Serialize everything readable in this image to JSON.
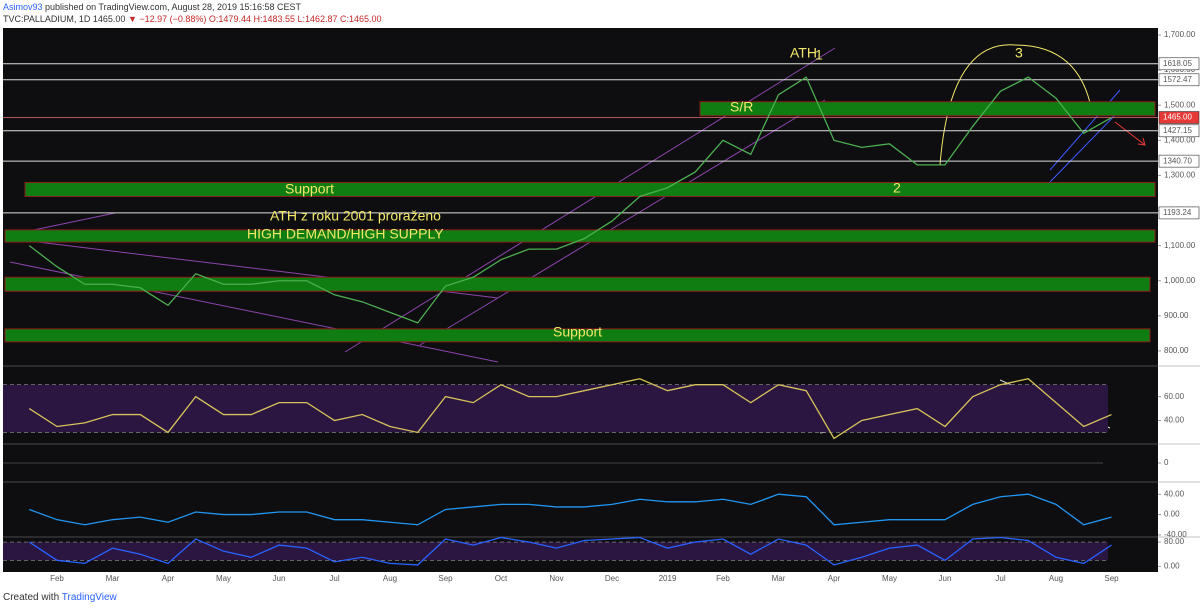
{
  "header": {
    "author": "Asimov93",
    "published": "published on TradingView.com, August 28, 2019 15:16:58 CEST",
    "symbol": "TVC:PALLADIUM, 1D",
    "last": "1465.00",
    "change": "▼ −12.97 (−0.88%)",
    "ohlc": "O:1479.44 H:1483.55 L:1462.87 C:1465.00"
  },
  "chart_data": [
    {
      "type": "line",
      "color": "#4caf50",
      "categories": [
        null,
        "Feb",
        null,
        "Mar",
        null,
        "Apr",
        null,
        "May",
        null,
        "Jun",
        null,
        "Jul",
        null,
        "Aug",
        null,
        "Sep",
        null,
        "Oct",
        null,
        "Nov",
        null,
        "Dec",
        null,
        "2019",
        null,
        "Feb",
        null,
        "Mar",
        null,
        "Apr",
        null,
        "May",
        null,
        "Jun",
        null,
        "Jul",
        null,
        "Aug",
        null,
        "Sep"
      ],
      "values": [
        1100,
        1040,
        990,
        990,
        980,
        930,
        1020,
        990,
        990,
        1000,
        1000,
        960,
        940,
        910,
        880,
        985,
        1010,
        1060,
        1090,
        1090,
        1120,
        1170,
        1240,
        1265,
        1310,
        1400,
        1360,
        1530,
        1580,
        1400,
        1380,
        1390,
        1330,
        1330,
        1440,
        1540,
        1580,
        1520,
        1420,
        1465
      ],
      "ylim": [
        760,
        1720
      ],
      "yticks": [
        {
          "value": 800,
          "label": "800.00"
        },
        {
          "value": 900,
          "label": "900.00"
        },
        {
          "value": 1000,
          "label": "1,000.00"
        },
        {
          "value": 1100,
          "label": "1,100.00"
        },
        {
          "value": 1200,
          "label": "1,200.00"
        },
        {
          "value": 1300,
          "label": "1,300.00"
        },
        {
          "value": 1400,
          "label": "1,400.00"
        },
        {
          "value": 1500,
          "label": "1,500.00"
        },
        {
          "value": 1600,
          "label": "1,600.00"
        },
        {
          "value": 1700,
          "label": "1,700.00"
        }
      ],
      "levels": [
        1618.05,
        1572.47,
        {
          "value": 1465,
          "label": "1465.00"
        },
        1427.15,
        {
          "value": 1340.7,
          "label": "1340.70"
        },
        1193.24
      ],
      "zones": [
        {
          "from": 1470,
          "to": 1510
        },
        {
          "from": 1240,
          "to": 1280
        },
        {
          "from": 1110,
          "to": 1145
        },
        {
          "from": 970,
          "to": 1010
        },
        {
          "from": 826,
          "to": 863
        }
      ],
      "annotations": [
        "ATH",
        "1",
        "S/R",
        "Support",
        "ATH z roku 2001 proraženo",
        "HIGH DEMAND/HIGH SUPPLY",
        "Support",
        "2",
        "3"
      ]
    },
    {
      "type": "line",
      "color": "#d8c35a",
      "values": [
        50,
        35,
        38,
        45,
        45,
        30,
        60,
        45,
        45,
        55,
        55,
        40,
        45,
        35,
        30,
        60,
        55,
        70,
        60,
        60,
        65,
        70,
        75,
        65,
        70,
        70,
        55,
        70,
        65,
        25,
        40,
        45,
        50,
        35,
        60,
        70,
        75,
        55,
        35,
        45
      ],
      "ylim": [
        22,
        84
      ],
      "yticks": [
        {
          "value": 60,
          "label": "60.00"
        },
        {
          "value": 40,
          "label": "40.00"
        }
      ],
      "levels": [
        70,
        30
      ]
    },
    {
      "type": "line",
      "ylim": [
        -1,
        1
      ],
      "yticks": [
        0
      ]
    },
    {
      "type": "line",
      "color": "#2196f3",
      "values": [
        10,
        -10,
        -20,
        -10,
        -5,
        -15,
        5,
        0,
        0,
        5,
        5,
        -10,
        -10,
        -15,
        -20,
        10,
        15,
        20,
        20,
        15,
        15,
        20,
        30,
        25,
        25,
        30,
        20,
        40,
        35,
        -20,
        -15,
        -10,
        -10,
        -10,
        20,
        35,
        40,
        20,
        -20,
        -5
      ],
      "ylim": [
        -44,
        60
      ],
      "yticks": [
        {
          "value": 40,
          "label": "40.00"
        },
        {
          "value": 0,
          "label": "0.00"
        },
        {
          "value": -40,
          "label": "-40.00"
        }
      ]
    },
    {
      "type": "line",
      "color": "#2962ff",
      "values": [
        80,
        20,
        10,
        60,
        40,
        10,
        90,
        50,
        30,
        70,
        60,
        15,
        30,
        10,
        5,
        90,
        70,
        95,
        80,
        60,
        85,
        90,
        95,
        60,
        80,
        90,
        40,
        90,
        70,
        5,
        30,
        60,
        70,
        20,
        90,
        95,
        85,
        30,
        10,
        70
      ],
      "ylim": [
        -15,
        90
      ],
      "yticks": [
        {
          "value": 80,
          "label": "80.00"
        },
        {
          "value": 0,
          "label": "0.00"
        }
      ],
      "levels": [
        80,
        20
      ]
    }
  ],
  "footer": {
    "created": "Created with",
    "brand": "TradingView"
  }
}
